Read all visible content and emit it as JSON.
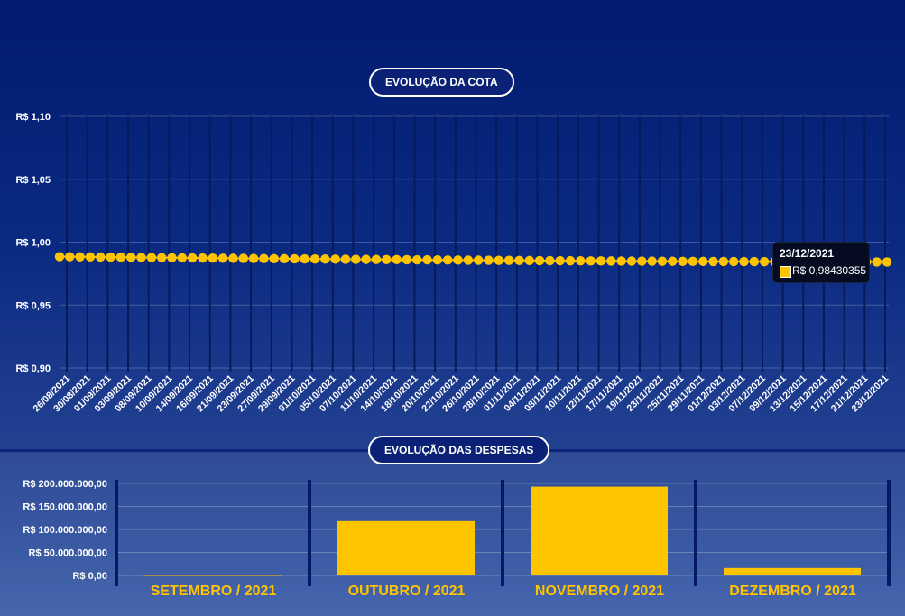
{
  "headers": {
    "cota": "EVOLUÇÃO DA COTA",
    "despesas": "EVOLUÇÃO DAS DESPESAS"
  },
  "colors": {
    "accent": "#ffc400",
    "background": "#011b6e"
  },
  "tooltip": {
    "date": "23/12/2021",
    "value": "R$ 0,98430355"
  },
  "chart_data": [
    {
      "type": "line",
      "y_ticks": [
        "R$ 1,10",
        "R$ 1,05",
        "R$ 1,00",
        "R$ 0,95",
        "R$ 0,90"
      ],
      "ylim": [
        0.9,
        1.1
      ],
      "x_tick_labels": [
        "26/08/2021",
        "30/08/2021",
        "01/09/2021",
        "03/09/2021",
        "08/09/2021",
        "10/09/2021",
        "14/09/2021",
        "16/09/2021",
        "21/09/2021",
        "23/09/2021",
        "27/09/2021",
        "29/09/2021",
        "01/10/2021",
        "05/10/2021",
        "07/10/2021",
        "11/10/2021",
        "14/10/2021",
        "18/10/2021",
        "20/10/2021",
        "22/10/2021",
        "26/10/2021",
        "28/10/2021",
        "01/11/2021",
        "04/11/2021",
        "08/11/2021",
        "10/11/2021",
        "12/11/2021",
        "17/11/2021",
        "19/11/2021",
        "23/11/2021",
        "25/11/2021",
        "29/11/2021",
        "01/12/2021",
        "03/12/2021",
        "07/12/2021",
        "09/12/2021",
        "13/12/2021",
        "15/12/2021",
        "17/12/2021",
        "21/12/2021",
        "23/12/2021"
      ],
      "points_count": 82,
      "y_start": 0.9885,
      "y_end": 0.98430355,
      "grid": true
    },
    {
      "type": "bar",
      "categories": [
        "SETEMBRO / 2021",
        "OUTUBRO / 2021",
        "NOVEMBRO / 2021",
        "DEZEMBRO / 2021"
      ],
      "values": [
        1000000,
        118000000,
        193000000,
        16000000
      ],
      "y_ticks": [
        "R$ 200.000.000,00",
        "R$ 150.000.000,00",
        "R$ 100.000.000,00",
        "R$ 50.000.000,00",
        "R$ 0,00"
      ],
      "ylim": [
        0,
        200000000
      ],
      "grid": true
    }
  ]
}
